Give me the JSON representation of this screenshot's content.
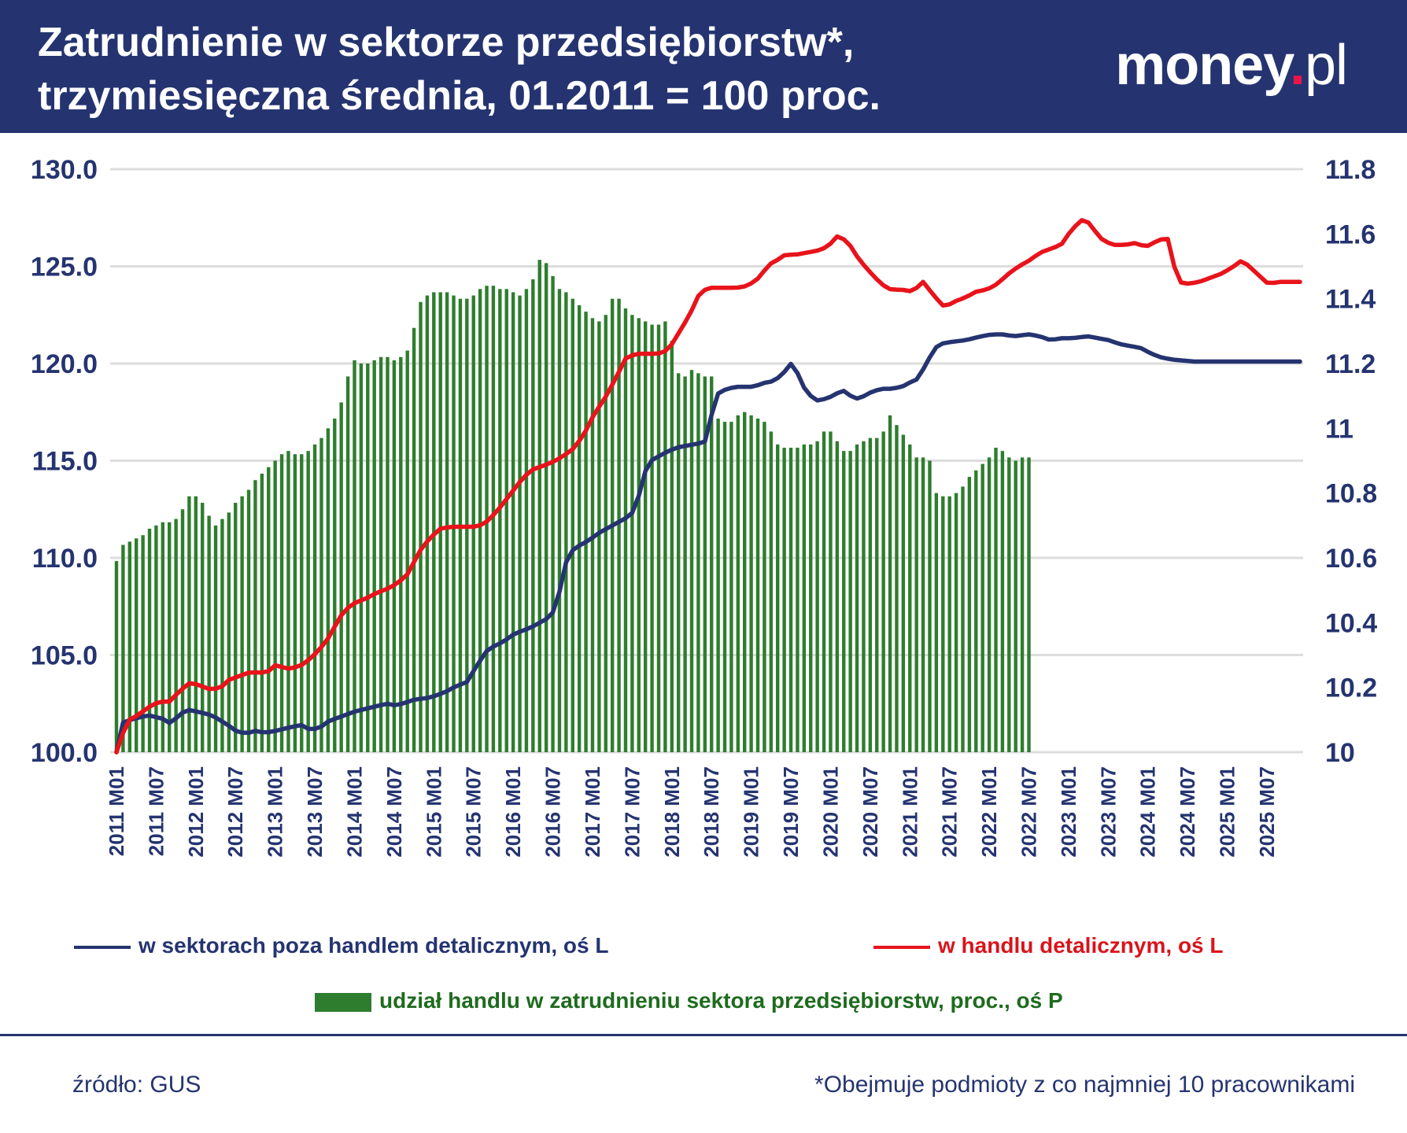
{
  "header": {
    "title_line1": "Zatrudnienie w sektorze przedsiębiorstw*,",
    "title_line2": "trzymiesięczna średnia, 01.2011 = 100 proc.",
    "brand_main": "money",
    "brand_dot": ".",
    "brand_tld": "pl"
  },
  "colors": {
    "header_bg": "#253470",
    "blue_series": "#253470",
    "red_series": "#e8131b",
    "green_bars": "#2e7d2e",
    "grid": "#dddddd"
  },
  "chart_data": {
    "type": "bar+line",
    "x_start": "2011-01",
    "x_end": "2025-12",
    "x_tick_labels": [
      "2011 M01",
      "2011 M07",
      "2012 M01",
      "2012 M07",
      "2013 M01",
      "2013 M07",
      "2014 M01",
      "2014 M07",
      "2015 M01",
      "2015 M07",
      "2016 M01",
      "2016 M07",
      "2017 M01",
      "2017 M07",
      "2018 M01",
      "2018 M07",
      "2019 M01",
      "2019 M07",
      "2020 M01",
      "2020 M07",
      "2021 M01",
      "2021 M07",
      "2022 M01",
      "2022 M07",
      "2023 M01",
      "2023 M07",
      "2024 M01",
      "2024 M07",
      "2025 M01",
      "2025 M07"
    ],
    "left_axis": {
      "ticks": [
        "100.0",
        "105.0",
        "110.0",
        "115.0",
        "120.0",
        "125.0",
        "130.0"
      ],
      "ylim": [
        100,
        130
      ]
    },
    "right_axis": {
      "ticks": [
        "10",
        "10.2",
        "10.4",
        "10.6",
        "10.8",
        "11",
        "11.2",
        "11.4",
        "11.6",
        "11.8"
      ],
      "ylim": [
        10,
        11.8
      ]
    },
    "series": [
      {
        "name": "w sektorach poza handlem detalicznym, oś L",
        "type": "line",
        "axis": "left",
        "keypoints": [
          [
            0,
            100.0
          ],
          [
            1,
            101.5
          ],
          [
            3,
            101.7
          ],
          [
            6,
            101.9
          ],
          [
            9,
            101.7
          ],
          [
            10,
            101.5
          ],
          [
            12,
            101.9
          ],
          [
            13,
            102.2
          ],
          [
            15,
            102.1
          ],
          [
            18,
            101.9
          ],
          [
            21,
            101.4
          ],
          [
            23,
            101.0
          ],
          [
            25,
            101.0
          ],
          [
            26,
            101.1
          ],
          [
            28,
            101.0
          ],
          [
            30,
            101.1
          ],
          [
            33,
            101.3
          ],
          [
            35,
            101.4
          ],
          [
            36,
            101.2
          ],
          [
            38,
            101.2
          ],
          [
            40,
            101.6
          ],
          [
            43,
            101.9
          ],
          [
            45,
            102.1
          ],
          [
            48,
            102.3
          ],
          [
            51,
            102.5
          ],
          [
            52,
            102.4
          ],
          [
            54,
            102.5
          ],
          [
            56,
            102.7
          ],
          [
            59,
            102.8
          ],
          [
            62,
            103.1
          ],
          [
            64,
            103.4
          ],
          [
            66,
            103.6
          ],
          [
            68,
            104.5
          ],
          [
            70,
            105.3
          ],
          [
            73,
            105.7
          ],
          [
            75,
            106.1
          ],
          [
            78,
            106.4
          ],
          [
            80,
            106.7
          ],
          [
            82,
            107.0
          ],
          [
            84,
            108.7
          ],
          [
            85,
            110.2
          ],
          [
            87,
            110.6
          ],
          [
            89,
            110.9
          ],
          [
            91,
            111.3
          ],
          [
            93,
            111.6
          ],
          [
            95,
            111.9
          ],
          [
            97,
            112.2
          ],
          [
            99,
            113.6
          ],
          [
            100,
            114.9
          ],
          [
            102,
            115.2
          ],
          [
            104,
            115.5
          ],
          [
            106,
            115.7
          ],
          [
            108,
            115.8
          ],
          [
            110,
            115.9
          ],
          [
            111,
            116.0
          ],
          [
            112,
            117.2
          ],
          [
            113,
            118.4
          ],
          [
            115,
            118.7
          ],
          [
            117,
            118.8
          ],
          [
            120,
            118.8
          ],
          [
            122,
            119.0
          ],
          [
            124,
            119.1
          ],
          [
            126,
            119.6
          ],
          [
            127,
            120.0
          ],
          [
            128,
            119.7
          ],
          [
            129,
            119.1
          ],
          [
            130,
            118.5
          ],
          [
            132,
            118.1
          ],
          [
            134,
            118.2
          ],
          [
            136,
            118.5
          ],
          [
            137,
            118.6
          ],
          [
            138,
            118.4
          ],
          [
            139,
            118.2
          ],
          [
            140,
            118.2
          ],
          [
            142,
            118.5
          ],
          [
            144,
            118.7
          ],
          [
            146,
            118.7
          ],
          [
            148,
            118.8
          ],
          [
            150,
            119.1
          ],
          [
            151,
            119.2
          ],
          [
            152,
            119.7
          ],
          [
            154,
            120.7
          ],
          [
            155,
            121.0
          ],
          [
            157,
            121.1
          ],
          [
            160,
            121.2
          ],
          [
            163,
            121.4
          ],
          [
            165,
            121.5
          ],
          [
            167,
            121.5
          ],
          [
            169,
            121.4
          ],
          [
            172,
            121.5
          ],
          [
            174,
            121.4
          ],
          [
            176,
            121.2
          ],
          [
            178,
            121.3
          ],
          [
            180,
            121.3
          ],
          [
            183,
            121.4
          ],
          [
            185,
            121.3
          ],
          [
            187,
            121.2
          ],
          [
            189,
            121.0
          ],
          [
            191,
            120.9
          ],
          [
            193,
            120.8
          ],
          [
            195,
            120.5
          ],
          [
            197,
            120.3
          ],
          [
            199,
            120.2
          ],
          [
            203,
            120.1
          ]
        ]
      },
      {
        "name": "w handlu detalicznym, oś L",
        "type": "line",
        "axis": "left",
        "keypoints": [
          [
            0,
            100.0
          ],
          [
            2,
            101.6
          ],
          [
            4,
            101.9
          ],
          [
            6,
            102.3
          ],
          [
            8,
            102.6
          ],
          [
            10,
            102.6
          ],
          [
            11,
            102.9
          ],
          [
            13,
            103.4
          ],
          [
            14,
            103.6
          ],
          [
            16,
            103.4
          ],
          [
            18,
            103.2
          ],
          [
            20,
            103.4
          ],
          [
            21,
            103.7
          ],
          [
            23,
            103.9
          ],
          [
            25,
            104.1
          ],
          [
            27,
            104.1
          ],
          [
            28,
            104.1
          ],
          [
            29,
            104.2
          ],
          [
            30,
            104.5
          ],
          [
            32,
            104.3
          ],
          [
            33,
            104.3
          ],
          [
            35,
            104.5
          ],
          [
            36,
            104.7
          ],
          [
            38,
            105.2
          ],
          [
            40,
            105.9
          ],
          [
            42,
            106.9
          ],
          [
            43,
            107.3
          ],
          [
            45,
            107.7
          ],
          [
            47,
            107.9
          ],
          [
            49,
            108.2
          ],
          [
            51,
            108.4
          ],
          [
            53,
            108.7
          ],
          [
            55,
            109.2
          ],
          [
            57,
            110.3
          ],
          [
            59,
            111.0
          ],
          [
            61,
            111.5
          ],
          [
            63,
            111.6
          ],
          [
            64,
            111.6
          ],
          [
            66,
            111.6
          ],
          [
            68,
            111.6
          ],
          [
            70,
            111.9
          ],
          [
            72,
            112.5
          ],
          [
            74,
            113.2
          ],
          [
            76,
            113.9
          ],
          [
            78,
            114.5
          ],
          [
            80,
            114.7
          ],
          [
            82,
            114.9
          ],
          [
            84,
            115.2
          ],
          [
            86,
            115.6
          ],
          [
            88,
            116.3
          ],
          [
            90,
            117.4
          ],
          [
            92,
            118.2
          ],
          [
            94,
            119.2
          ],
          [
            96,
            120.3
          ],
          [
            98,
            120.5
          ],
          [
            100,
            120.5
          ],
          [
            102,
            120.5
          ],
          [
            104,
            120.7
          ],
          [
            106,
            121.6
          ],
          [
            108,
            122.5
          ],
          [
            110,
            123.7
          ],
          [
            112,
            123.9
          ],
          [
            114,
            123.9
          ],
          [
            116,
            123.9
          ],
          [
            117,
            123.9
          ],
          [
            119,
            124.0
          ],
          [
            121,
            124.4
          ],
          [
            123,
            125.1
          ],
          [
            125,
            125.4
          ],
          [
            126,
            125.6
          ],
          [
            128,
            125.6
          ],
          [
            130,
            125.7
          ],
          [
            132,
            125.8
          ],
          [
            134,
            126.0
          ],
          [
            136,
            126.6
          ],
          [
            138,
            126.2
          ],
          [
            139,
            125.7
          ],
          [
            141,
            125.0
          ],
          [
            143,
            124.4
          ],
          [
            145,
            123.9
          ],
          [
            146,
            123.8
          ],
          [
            148,
            123.8
          ],
          [
            150,
            123.7
          ],
          [
            152,
            124.2
          ],
          [
            154,
            123.5
          ],
          [
            156,
            122.9
          ],
          [
            158,
            123.2
          ],
          [
            160,
            123.4
          ],
          [
            162,
            123.7
          ],
          [
            164,
            123.8
          ],
          [
            166,
            124.1
          ],
          [
            168,
            124.6
          ],
          [
            170,
            125.0
          ],
          [
            172,
            125.3
          ],
          [
            174,
            125.7
          ],
          [
            176,
            125.9
          ],
          [
            178,
            126.1
          ],
          [
            180,
            126.9
          ],
          [
            182,
            127.4
          ],
          [
            183,
            127.3
          ],
          [
            185,
            126.6
          ],
          [
            186,
            126.3
          ],
          [
            188,
            126.1
          ],
          [
            190,
            126.1
          ],
          [
            192,
            126.2
          ],
          [
            194,
            126.0
          ],
          [
            196,
            126.3
          ],
          [
            198,
            126.5
          ],
          [
            200,
            124.2
          ],
          [
            202,
            124.1
          ],
          [
            204,
            124.2
          ],
          [
            206,
            124.4
          ],
          [
            208,
            124.6
          ],
          [
            210,
            124.9
          ],
          [
            212,
            125.3
          ],
          [
            213,
            125.1
          ],
          [
            215,
            124.6
          ],
          [
            217,
            124.1
          ],
          [
            219,
            124.2
          ],
          [
            221,
            124.2
          ],
          [
            223,
            124.2
          ]
        ]
      },
      {
        "name": "udział handlu w zatrudnieniu sektora przedsiębiorstw, proc., oś P",
        "type": "bar",
        "axis": "right",
        "values": [
          10.59,
          10.64,
          10.65,
          10.66,
          10.67,
          10.69,
          10.7,
          10.71,
          10.71,
          10.72,
          10.75,
          10.79,
          10.79,
          10.77,
          10.73,
          10.7,
          10.72,
          10.74,
          10.77,
          10.79,
          10.81,
          10.84,
          10.86,
          10.88,
          10.9,
          10.92,
          10.93,
          10.92,
          10.92,
          10.93,
          10.95,
          10.97,
          11.0,
          11.03,
          11.08,
          11.16,
          11.21,
          11.2,
          11.2,
          11.21,
          11.22,
          11.22,
          11.21,
          11.22,
          11.24,
          11.31,
          11.39,
          11.41,
          11.42,
          11.42,
          11.42,
          11.41,
          11.4,
          11.4,
          11.41,
          11.43,
          11.44,
          11.44,
          11.43,
          11.43,
          11.42,
          11.41,
          11.43,
          11.46,
          11.52,
          11.51,
          11.47,
          11.43,
          11.42,
          11.4,
          11.38,
          11.36,
          11.34,
          11.33,
          11.35,
          11.4,
          11.4,
          11.37,
          11.35,
          11.34,
          11.33,
          11.32,
          11.32,
          11.33,
          11.27,
          11.17,
          11.16,
          11.18,
          11.17,
          11.16,
          11.16,
          11.03,
          11.02,
          11.02,
          11.04,
          11.05,
          11.04,
          11.03,
          11.02,
          10.99,
          10.95,
          10.94,
          10.94,
          10.94,
          10.95,
          10.95,
          10.96,
          10.99,
          10.99,
          10.96,
          10.93,
          10.93,
          10.95,
          10.96,
          10.97,
          10.97,
          10.99,
          11.04,
          11.01,
          10.98,
          10.95,
          10.91,
          10.91,
          10.9,
          10.8,
          10.79,
          10.79,
          10.8,
          10.82,
          10.85,
          10.87,
          10.89,
          10.91,
          10.94,
          10.93,
          10.91,
          10.9,
          10.91,
          10.91
        ]
      }
    ]
  },
  "legend": {
    "blue": "w sektorach poza handlem detalicznym, oś L",
    "red": "w handlu detalicznym, oś L",
    "green": "udział handlu w zatrudnieniu sektora przedsiębiorstw, proc., oś P"
  },
  "footer": {
    "source": "źródło: GUS",
    "footnote": "*Obejmuje podmioty z co najmniej 10 pracownikami"
  }
}
